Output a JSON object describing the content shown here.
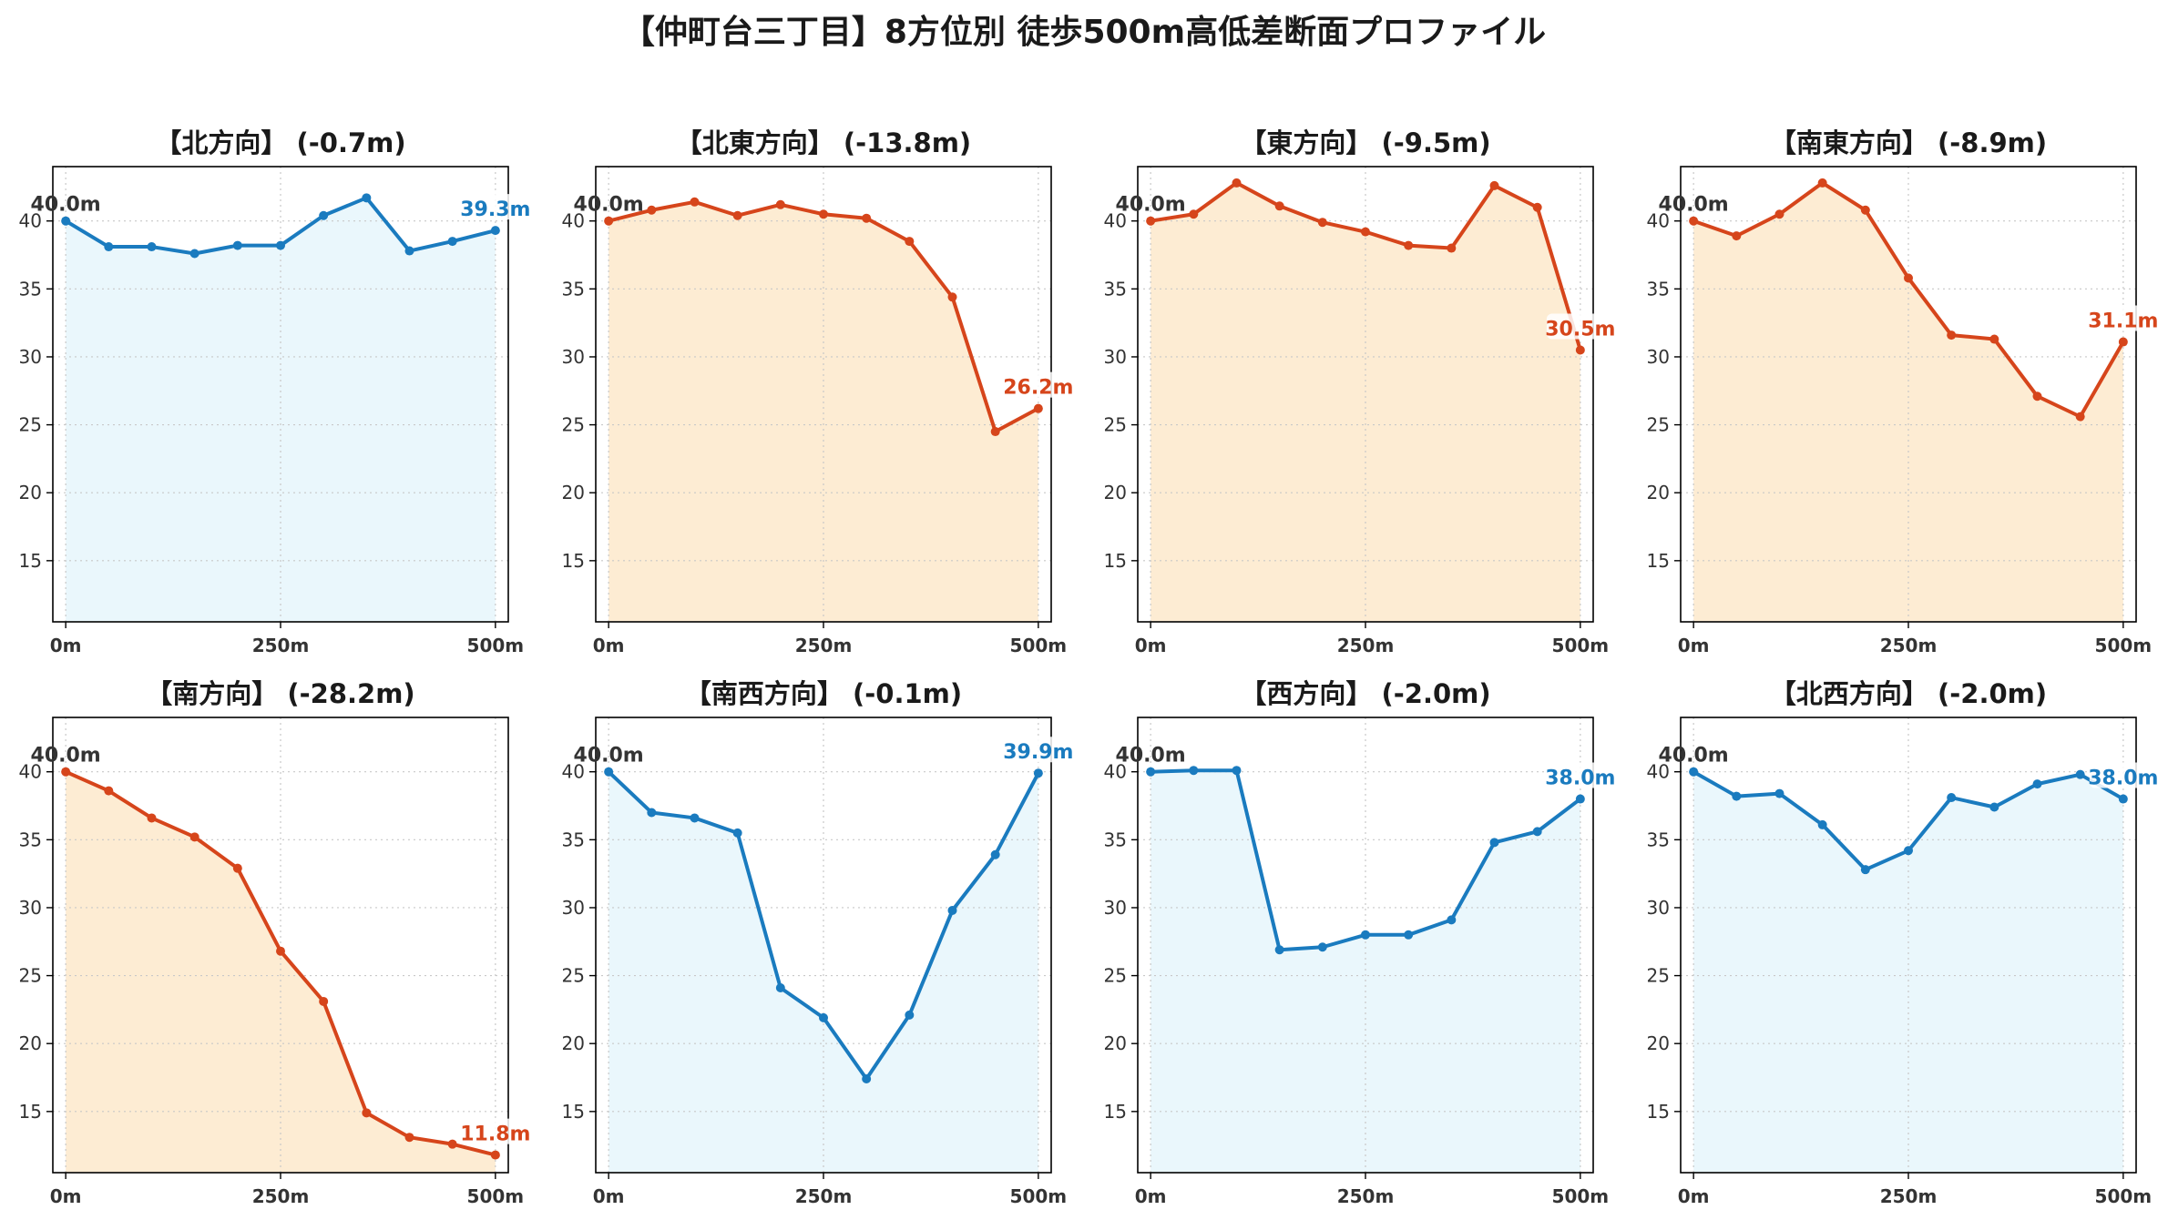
{
  "figure": {
    "title": "【仲町台三丁目】8方位別 徒歩500m高低差断面プロファイル"
  },
  "colors": {
    "up": "#1a7bbf",
    "up_fill": "#eaf7fc",
    "down": "#d6451b",
    "down_fill": "#fdecd3",
    "grid": "#c8c8c8",
    "axis": "#000000"
  },
  "chart_data": [
    {
      "type": "area",
      "title": "【北方向】 (-0.7m)",
      "trend": "up",
      "x": [
        0,
        50,
        100,
        150,
        200,
        250,
        300,
        350,
        400,
        450,
        500
      ],
      "y": [
        40.0,
        38.1,
        38.1,
        37.6,
        38.2,
        38.2,
        40.4,
        41.7,
        37.8,
        38.5,
        39.3
      ],
      "xticks": [
        "0m",
        "250m",
        "500m"
      ],
      "yticks": [
        15,
        20,
        25,
        30,
        35,
        40
      ],
      "ylim": [
        10.5,
        44.0
      ],
      "xlim": [
        -15,
        515
      ],
      "start_label": "40.0m",
      "end_label": "39.3m",
      "grid": true
    },
    {
      "type": "area",
      "title": "【北東方向】 (-13.8m)",
      "trend": "down",
      "x": [
        0,
        50,
        100,
        150,
        200,
        250,
        300,
        350,
        400,
        450,
        500
      ],
      "y": [
        40.0,
        40.8,
        41.4,
        40.4,
        41.2,
        40.5,
        40.2,
        38.5,
        34.4,
        24.5,
        26.2
      ],
      "xticks": [
        "0m",
        "250m",
        "500m"
      ],
      "yticks": [
        15,
        20,
        25,
        30,
        35,
        40
      ],
      "ylim": [
        10.5,
        44.0
      ],
      "xlim": [
        -15,
        515
      ],
      "start_label": "40.0m",
      "end_label": "26.2m",
      "grid": true
    },
    {
      "type": "area",
      "title": "【東方向】 (-9.5m)",
      "trend": "down",
      "x": [
        0,
        50,
        100,
        150,
        200,
        250,
        300,
        350,
        400,
        450,
        500
      ],
      "y": [
        40.0,
        40.5,
        42.8,
        41.1,
        39.9,
        39.2,
        38.2,
        38.0,
        42.6,
        41.0,
        30.5
      ],
      "xticks": [
        "0m",
        "250m",
        "500m"
      ],
      "yticks": [
        15,
        20,
        25,
        30,
        35,
        40
      ],
      "ylim": [
        10.5,
        44.0
      ],
      "xlim": [
        -15,
        515
      ],
      "start_label": "40.0m",
      "end_label": "30.5m",
      "grid": true
    },
    {
      "type": "area",
      "title": "【南東方向】 (-8.9m)",
      "trend": "down",
      "x": [
        0,
        50,
        100,
        150,
        200,
        250,
        300,
        350,
        400,
        450,
        500
      ],
      "y": [
        40.0,
        38.9,
        40.5,
        42.8,
        40.8,
        35.8,
        31.6,
        31.3,
        27.1,
        25.6,
        31.1
      ],
      "xticks": [
        "0m",
        "250m",
        "500m"
      ],
      "yticks": [
        15,
        20,
        25,
        30,
        35,
        40
      ],
      "ylim": [
        10.5,
        44.0
      ],
      "xlim": [
        -15,
        515
      ],
      "start_label": "40.0m",
      "end_label": "31.1m",
      "grid": true
    },
    {
      "type": "area",
      "title": "【南方向】 (-28.2m)",
      "trend": "down",
      "x": [
        0,
        50,
        100,
        150,
        200,
        250,
        300,
        350,
        400,
        450,
        500
      ],
      "y": [
        40.0,
        38.6,
        36.6,
        35.2,
        32.9,
        26.8,
        23.1,
        14.9,
        13.1,
        12.6,
        11.8
      ],
      "xticks": [
        "0m",
        "250m",
        "500m"
      ],
      "yticks": [
        15,
        20,
        25,
        30,
        35,
        40
      ],
      "ylim": [
        10.5,
        44.0
      ],
      "xlim": [
        -15,
        515
      ],
      "start_label": "40.0m",
      "end_label": "11.8m",
      "grid": true
    },
    {
      "type": "area",
      "title": "【南西方向】 (-0.1m)",
      "trend": "up",
      "x": [
        0,
        50,
        100,
        150,
        200,
        250,
        300,
        350,
        400,
        450,
        500
      ],
      "y": [
        40.0,
        37.0,
        36.6,
        35.5,
        24.1,
        21.9,
        17.4,
        22.1,
        29.8,
        33.9,
        39.9
      ],
      "xticks": [
        "0m",
        "250m",
        "500m"
      ],
      "yticks": [
        15,
        20,
        25,
        30,
        35,
        40
      ],
      "ylim": [
        10.5,
        44.0
      ],
      "xlim": [
        -15,
        515
      ],
      "start_label": "40.0m",
      "end_label": "39.9m",
      "grid": true
    },
    {
      "type": "area",
      "title": "【西方向】 (-2.0m)",
      "trend": "up",
      "x": [
        0,
        50,
        100,
        150,
        200,
        250,
        300,
        350,
        400,
        450,
        500
      ],
      "y": [
        40.0,
        40.1,
        40.1,
        26.9,
        27.1,
        28.0,
        28.0,
        29.1,
        34.8,
        35.6,
        38.0
      ],
      "xticks": [
        "0m",
        "250m",
        "500m"
      ],
      "yticks": [
        15,
        20,
        25,
        30,
        35,
        40
      ],
      "ylim": [
        10.5,
        44.0
      ],
      "xlim": [
        -15,
        515
      ],
      "start_label": "40.0m",
      "end_label": "38.0m",
      "grid": true
    },
    {
      "type": "area",
      "title": "【北西方向】 (-2.0m)",
      "trend": "up",
      "x": [
        0,
        50,
        100,
        150,
        200,
        250,
        300,
        350,
        400,
        450,
        500
      ],
      "y": [
        40.0,
        38.2,
        38.4,
        36.1,
        32.8,
        34.2,
        38.1,
        37.4,
        39.1,
        39.8,
        38.0
      ],
      "xticks": [
        "0m",
        "250m",
        "500m"
      ],
      "yticks": [
        15,
        20,
        25,
        30,
        35,
        40
      ],
      "ylim": [
        10.5,
        44.0
      ],
      "xlim": [
        -15,
        515
      ],
      "start_label": "40.0m",
      "end_label": "38.0m",
      "grid": true
    }
  ]
}
